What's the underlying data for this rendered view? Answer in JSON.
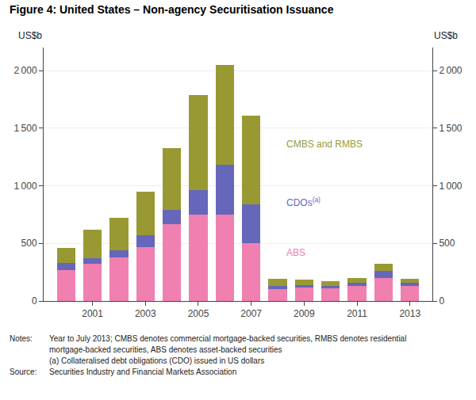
{
  "chart_data": {
    "type": "bar",
    "stacked": true,
    "title": "Figure 4: United States – Non-agency Securitisation Issuance",
    "ylabel": "US$b",
    "ylabel_right": "US$b",
    "categories": [
      null,
      "2001",
      null,
      "2003",
      null,
      "2005",
      null,
      "2007",
      null,
      "2009",
      null,
      "2011",
      null,
      "2013"
    ],
    "series": [
      {
        "name": "ABS",
        "color": "#f080b0",
        "values": [
          270,
          320,
          380,
          470,
          670,
          750,
          750,
          500,
          100,
          120,
          110,
          130,
          200,
          130
        ]
      },
      {
        "name": "CDOs",
        "superscript": "(a)",
        "color": "#6666bb",
        "values": [
          60,
          50,
          60,
          100,
          120,
          210,
          430,
          340,
          30,
          20,
          20,
          30,
          60,
          30
        ]
      },
      {
        "name": "CMBS and RMBS",
        "color": "#999933",
        "values": [
          130,
          250,
          280,
          380,
          540,
          830,
          870,
          770,
          60,
          45,
          40,
          40,
          60,
          30
        ]
      }
    ],
    "ylim": [
      0,
      2200
    ],
    "yticks": [
      0,
      500,
      {
        "value": 1000,
        "label": "1 000"
      },
      {
        "value": 1500,
        "label": "1 500"
      },
      {
        "value": 2000,
        "label": "2 000"
      }
    ],
    "y2lim": [
      0,
      2200
    ],
    "y2ticks": [
      0,
      500,
      {
        "value": 1000,
        "label": "1 000"
      },
      {
        "value": 1500,
        "label": "1 500"
      },
      {
        "value": 2000,
        "label": "2 000"
      }
    ],
    "grid": true,
    "notes": [
      {
        "label": "Notes:",
        "lines": [
          "Year to July 2013; CMBS denotes commercial mortgage-backed securities, RMBS denotes residential",
          "mortgage-backed securities, ABS denotes asset-backed securities",
          "(a) Collateralised debt obligations (CDO) issued in US dollars"
        ]
      },
      {
        "label": "Source:",
        "lines": [
          "Securities Industry and Financial Markets Association"
        ]
      }
    ]
  }
}
